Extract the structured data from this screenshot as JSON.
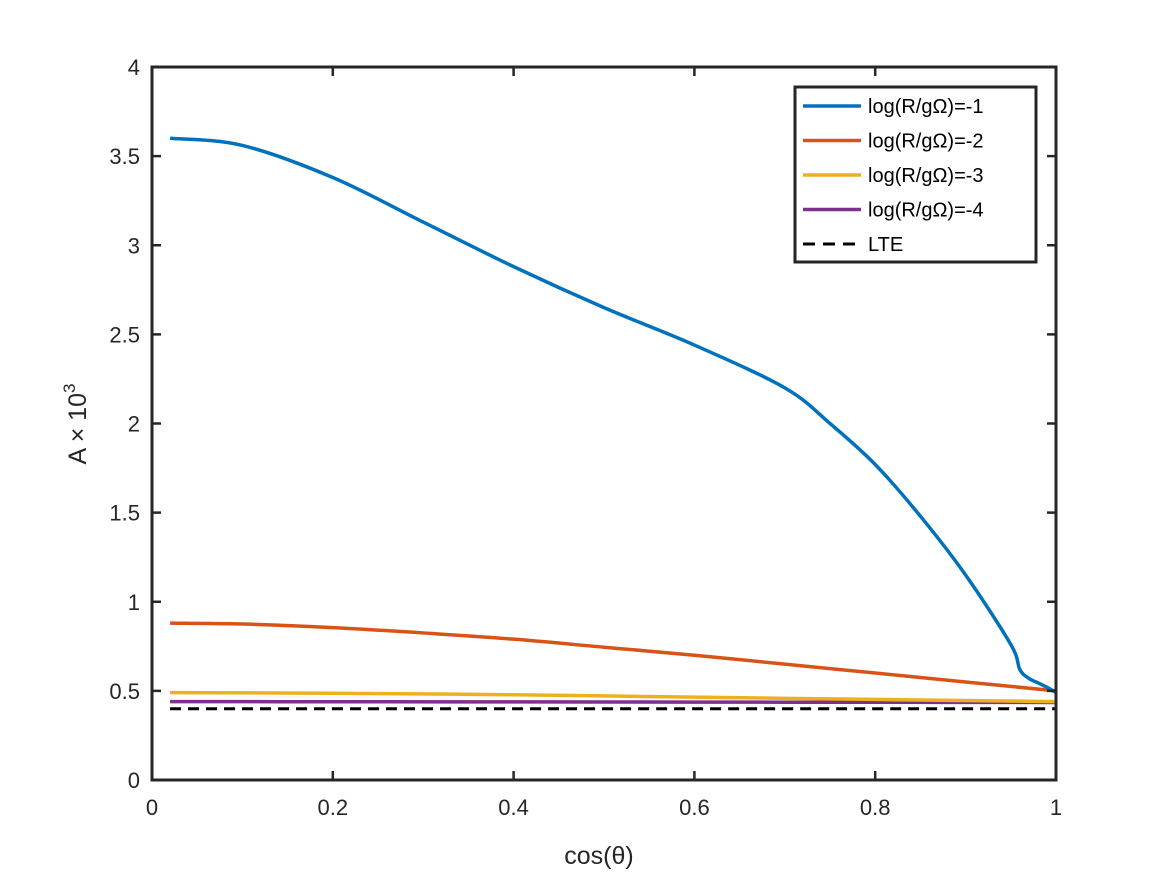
{
  "chart_data": {
    "type": "line",
    "xlabel": "cos(θ)",
    "ylabel_main": "A × 10",
    "ylabel_sup": "3",
    "xlim": [
      0,
      1
    ],
    "ylim": [
      0,
      4
    ],
    "xticks": [
      0,
      0.2,
      0.4,
      0.6,
      0.8,
      1
    ],
    "xtick_labels": [
      "0",
      "0.2",
      "0.4",
      "0.6",
      "0.8",
      "1"
    ],
    "yticks": [
      0,
      0.5,
      1,
      1.5,
      2,
      2.5,
      3,
      3.5,
      4
    ],
    "ytick_labels": [
      "0",
      "0.5",
      "1",
      "1.5",
      "2",
      "2.5",
      "3",
      "3.5",
      "4"
    ],
    "grid": false,
    "legend_position": "top-right",
    "series": [
      {
        "name": "log(R/gΩ)=-1",
        "color": "#0072BD",
        "style": "solid",
        "x": [
          0.02,
          0.1,
          0.2,
          0.3,
          0.4,
          0.5,
          0.6,
          0.7,
          0.75,
          0.8,
          0.85,
          0.9,
          0.95,
          0.96,
          0.97,
          0.98,
          0.99,
          1.0
        ],
        "y": [
          3.6,
          3.56,
          3.38,
          3.13,
          2.88,
          2.65,
          2.44,
          2.2,
          2.0,
          1.77,
          1.48,
          1.15,
          0.76,
          0.62,
          0.57,
          0.545,
          0.52,
          0.49
        ]
      },
      {
        "name": "log(R/gΩ)=-2",
        "color": "#D95319",
        "style": "solid",
        "x": [
          0.02,
          0.1,
          0.2,
          0.3,
          0.4,
          0.5,
          0.6,
          0.7,
          0.8,
          0.9,
          1.0
        ],
        "y": [
          0.88,
          0.875,
          0.855,
          0.825,
          0.79,
          0.745,
          0.7,
          0.65,
          0.6,
          0.55,
          0.5
        ]
      },
      {
        "name": "log(R/gΩ)=-3",
        "color": "#EDB120",
        "style": "solid",
        "x": [
          0.02,
          0.2,
          0.4,
          0.6,
          0.8,
          1.0
        ],
        "y": [
          0.49,
          0.487,
          0.478,
          0.465,
          0.452,
          0.44
        ]
      },
      {
        "name": "log(R/gΩ)=-4",
        "color": "#7E2F8E",
        "style": "solid",
        "x": [
          0.02,
          0.2,
          0.4,
          0.6,
          0.8,
          1.0
        ],
        "y": [
          0.44,
          0.439,
          0.438,
          0.437,
          0.436,
          0.435
        ]
      },
      {
        "name": "LTE",
        "color": "#000000",
        "style": "dashed",
        "x": [
          0.02,
          1.0
        ],
        "y": [
          0.4,
          0.4
        ]
      }
    ]
  }
}
